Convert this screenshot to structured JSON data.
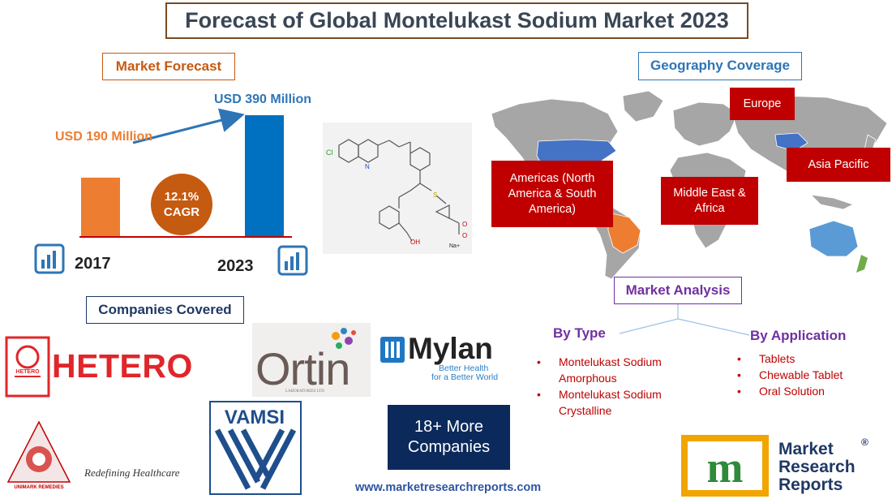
{
  "title": "Forecast of Global Montelukast Sodium Market 2023",
  "market_forecast": {
    "heading": "Market Forecast",
    "value_2017": "USD 190 Million",
    "value_2023": "USD 390 Million",
    "year_start": "2017",
    "year_end": "2023",
    "cagr_value": "12.1%",
    "cagr_label": "CAGR",
    "bars": [
      {
        "year": "2017",
        "value_musd": 190,
        "color": "#ed7d31"
      },
      {
        "year": "2023",
        "value_musd": 390,
        "color": "#0070c0"
      }
    ]
  },
  "geography": {
    "heading": "Geography Coverage",
    "regions": {
      "europe": "Europe",
      "americas": "Americas (North America & South America)",
      "middle_east_africa": "Middle East & Africa",
      "asia_pacific": "Asia Pacific"
    }
  },
  "market_analysis": {
    "heading": "Market Analysis",
    "by_type": {
      "heading": "By Type",
      "items": [
        "Montelukast Sodium Amorphous",
        "Montelukast Sodium Crystalline"
      ]
    },
    "by_application": {
      "heading": "By Application",
      "items": [
        "Tablets",
        "Chewable Tablet",
        "Oral Solution"
      ]
    }
  },
  "molecule": {
    "label_cl": "Cl",
    "label_n": "N",
    "label_s": "S",
    "label_oh": "OH",
    "label_o": "O",
    "label_o_minus": "O",
    "label_na": "Na+"
  },
  "companies": {
    "heading": "Companies Covered",
    "hetero": "HETERO",
    "hetero_emblem_text": "HETERO",
    "ortin": "Ortin",
    "ortin_sub": "LABORATORIES LTD",
    "mylan": "Mylan",
    "mylan_tagline_1": "Better Health",
    "mylan_tagline_2": "for a Better World",
    "vamsi": "VAMSI",
    "unimark": "UNIMARK REMEDIES",
    "unimark_tagline": "Redefining Healthcare",
    "more_line1": "18+ More",
    "more_line2": "Companies"
  },
  "footer": {
    "website": "www.marketresearchreports.com",
    "brand_line1": "Market",
    "brand_line2": "Research",
    "brand_line3": "Reports",
    "brand_reg": "®",
    "brand_logo_letter": "m"
  },
  "colors": {
    "orange": "#ed7d31",
    "blue": "#0070c0",
    "cagr_circle": "#c55a11",
    "region_label": "#c00000",
    "map_gray": "#a6a6a6",
    "highlight_blue": "#4472c4"
  }
}
